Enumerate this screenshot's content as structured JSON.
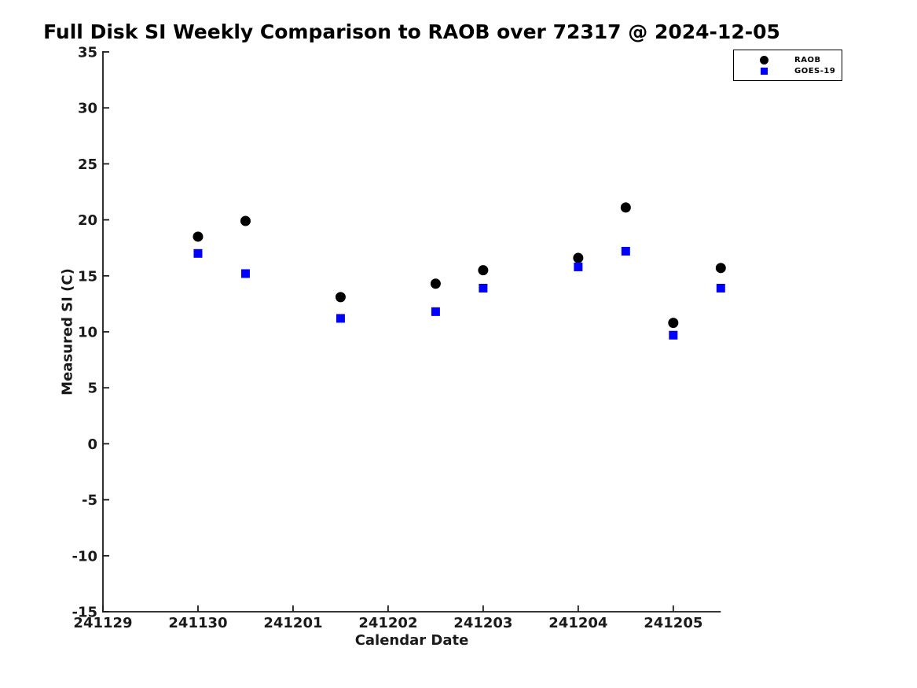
{
  "chart_data": {
    "type": "scatter",
    "title": "Full Disk SI Weekly Comparison to RAOB over 72317 @ 2024-12-05",
    "xlabel": "Calendar Date",
    "ylabel": "Measured SI (C)",
    "xlim": [
      0,
      6.5
    ],
    "ylim": [
      -15,
      35
    ],
    "grid": false,
    "legend_position": "top-right",
    "x_ticks": [
      {
        "label": "241129",
        "x": 0
      },
      {
        "label": "241130",
        "x": 1
      },
      {
        "label": "241201",
        "x": 2
      },
      {
        "label": "241202",
        "x": 3
      },
      {
        "label": "241203",
        "x": 4
      },
      {
        "label": "241204",
        "x": 5
      },
      {
        "label": "241205",
        "x": 6
      }
    ],
    "y_ticks": [
      {
        "label": "-15",
        "y": -15
      },
      {
        "label": "-10",
        "y": -10
      },
      {
        "label": "-5",
        "y": -5
      },
      {
        "label": "0",
        "y": 0
      },
      {
        "label": "5",
        "y": 5
      },
      {
        "label": "10",
        "y": 10
      },
      {
        "label": "15",
        "y": 15
      },
      {
        "label": "20",
        "y": 20
      },
      {
        "label": "25",
        "y": 25
      },
      {
        "label": "30",
        "y": 30
      },
      {
        "label": "35",
        "y": 35
      }
    ],
    "series": [
      {
        "name": "RAOB",
        "marker": "circle",
        "color": "#000000",
        "points": [
          {
            "date": "241130.0",
            "x": 1.0,
            "y": 18.5
          },
          {
            "date": "241130.5",
            "x": 1.5,
            "y": 19.9
          },
          {
            "date": "241201.5",
            "x": 2.5,
            "y": 13.1
          },
          {
            "date": "241202.5",
            "x": 3.5,
            "y": 14.3
          },
          {
            "date": "241203.0",
            "x": 4.0,
            "y": 15.5
          },
          {
            "date": "241204.0",
            "x": 5.0,
            "y": 16.6
          },
          {
            "date": "241204.5",
            "x": 5.5,
            "y": 21.1
          },
          {
            "date": "241205.0",
            "x": 6.0,
            "y": 10.8
          },
          {
            "date": "241205.5",
            "x": 6.5,
            "y": 15.7
          }
        ]
      },
      {
        "name": "GOES-19",
        "marker": "square",
        "color": "#0000ff",
        "points": [
          {
            "date": "241130.0",
            "x": 1.0,
            "y": 17.0
          },
          {
            "date": "241130.5",
            "x": 1.5,
            "y": 15.2
          },
          {
            "date": "241201.5",
            "x": 2.5,
            "y": 11.2
          },
          {
            "date": "241202.5",
            "x": 3.5,
            "y": 11.8
          },
          {
            "date": "241203.0",
            "x": 4.0,
            "y": 13.9
          },
          {
            "date": "241204.0",
            "x": 5.0,
            "y": 15.8
          },
          {
            "date": "241204.5",
            "x": 5.5,
            "y": 17.2
          },
          {
            "date": "241205.0",
            "x": 6.0,
            "y": 9.7
          },
          {
            "date": "241205.5",
            "x": 6.5,
            "y": 13.9
          }
        ]
      }
    ],
    "colors": {
      "axis": "#1a1a1a",
      "background": "#ffffff",
      "raob": "#000000",
      "goes19": "#0000ff"
    }
  }
}
